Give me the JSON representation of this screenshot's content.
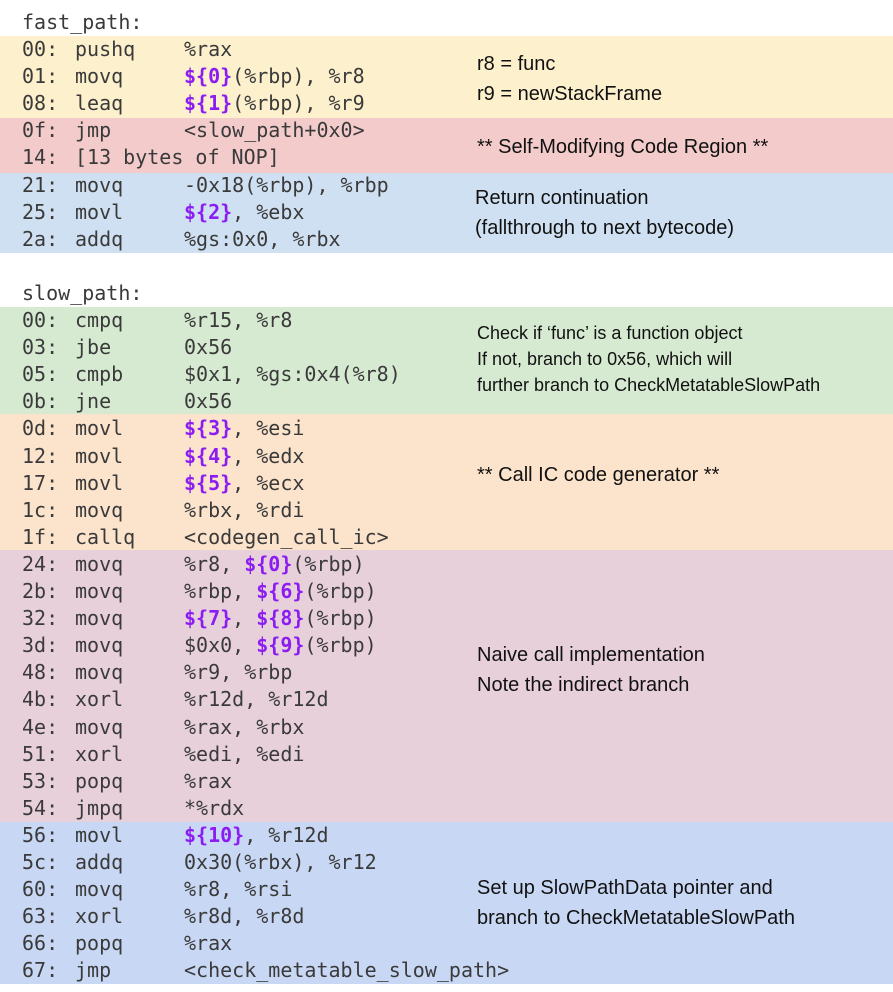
{
  "fast_path": {
    "label": "fast_path:",
    "lines": [
      {
        "addr": "00:",
        "op": "pushq",
        "args": [
          {
            "t": "%rax"
          }
        ]
      },
      {
        "addr": "01:",
        "op": "movq",
        "args": [
          {
            "t": "${0}",
            "ph": true
          },
          {
            "t": "(%rbp), %r8"
          }
        ]
      },
      {
        "addr": "08:",
        "op": "leaq",
        "args": [
          {
            "t": "${1}",
            "ph": true
          },
          {
            "t": "(%rbp), %r9"
          }
        ]
      },
      {
        "addr": "0f:",
        "op": "jmp",
        "args": [
          {
            "t": "<slow_path+0x0>"
          }
        ]
      },
      {
        "addr": "14:",
        "op": "[13 bytes of NOP]",
        "args": []
      },
      {
        "addr": "21:",
        "op": "movq",
        "args": [
          {
            "t": "-0x18(%rbp), %rbp"
          }
        ]
      },
      {
        "addr": "25:",
        "op": "movl",
        "args": [
          {
            "t": "${2}",
            "ph": true
          },
          {
            "t": ", %ebx"
          }
        ]
      },
      {
        "addr": "2a:",
        "op": "addq",
        "args": [
          {
            "t": "%gs:0x0, %rbx"
          }
        ]
      }
    ],
    "notes": {
      "setup": [
        "r8 = func",
        "r9 = newStackFrame"
      ],
      "smc": [
        "** Self-Modifying Code Region **"
      ],
      "return": [
        "Return continuation",
        "(fallthrough to next bytecode)"
      ]
    }
  },
  "slow_path": {
    "label": "slow_path:",
    "lines": [
      {
        "addr": "00:",
        "op": "cmpq",
        "args": [
          {
            "t": "%r15, %r8"
          }
        ]
      },
      {
        "addr": "03:",
        "op": "jbe",
        "args": [
          {
            "t": "0x56"
          }
        ]
      },
      {
        "addr": "05:",
        "op": "cmpb",
        "args": [
          {
            "t": "$0x1, %gs:0x4(%r8)"
          }
        ]
      },
      {
        "addr": "0b:",
        "op": "jne",
        "args": [
          {
            "t": "0x56"
          }
        ]
      },
      {
        "addr": "0d:",
        "op": "movl",
        "args": [
          {
            "t": "${3}",
            "ph": true
          },
          {
            "t": ", %esi"
          }
        ]
      },
      {
        "addr": "12:",
        "op": "movl",
        "args": [
          {
            "t": "${4}",
            "ph": true
          },
          {
            "t": ", %edx"
          }
        ]
      },
      {
        "addr": "17:",
        "op": "movl",
        "args": [
          {
            "t": "${5}",
            "ph": true
          },
          {
            "t": ", %ecx"
          }
        ]
      },
      {
        "addr": "1c:",
        "op": "movq",
        "args": [
          {
            "t": "%rbx, %rdi"
          }
        ]
      },
      {
        "addr": "1f:",
        "op": "callq",
        "args": [
          {
            "t": "<codegen_call_ic>"
          }
        ]
      },
      {
        "addr": "24:",
        "op": "movq",
        "args": [
          {
            "t": "%r8, "
          },
          {
            "t": "${0}",
            "ph": true
          },
          {
            "t": "(%rbp)"
          }
        ]
      },
      {
        "addr": "2b:",
        "op": "movq",
        "args": [
          {
            "t": "%rbp, "
          },
          {
            "t": "${6}",
            "ph": true
          },
          {
            "t": "(%rbp)"
          }
        ]
      },
      {
        "addr": "32:",
        "op": "movq",
        "args": [
          {
            "t": "${7}",
            "ph": true
          },
          {
            "t": ", "
          },
          {
            "t": "${8}",
            "ph": true
          },
          {
            "t": "(%rbp)"
          }
        ]
      },
      {
        "addr": "3d:",
        "op": "movq",
        "args": [
          {
            "t": "$0x0, "
          },
          {
            "t": "${9}",
            "ph": true
          },
          {
            "t": "(%rbp)"
          }
        ]
      },
      {
        "addr": "48:",
        "op": "movq",
        "args": [
          {
            "t": "%r9, %rbp"
          }
        ]
      },
      {
        "addr": "4b:",
        "op": "xorl",
        "args": [
          {
            "t": "%r12d, %r12d"
          }
        ]
      },
      {
        "addr": "4e:",
        "op": "movq",
        "args": [
          {
            "t": "%rax, %rbx"
          }
        ]
      },
      {
        "addr": "51:",
        "op": "xorl",
        "args": [
          {
            "t": "%edi, %edi"
          }
        ]
      },
      {
        "addr": "53:",
        "op": "popq",
        "args": [
          {
            "t": "%rax"
          }
        ]
      },
      {
        "addr": "54:",
        "op": "jmpq",
        "args": [
          {
            "t": "*%rdx"
          }
        ]
      },
      {
        "addr": "56:",
        "op": "movl",
        "args": [
          {
            "t": "${10}",
            "ph": true
          },
          {
            "t": ", %r12d"
          }
        ]
      },
      {
        "addr": "5c:",
        "op": "addq",
        "args": [
          {
            "t": "0x30(%rbx), %r12"
          }
        ]
      },
      {
        "addr": "60:",
        "op": "movq",
        "args": [
          {
            "t": "%r8, %rsi"
          }
        ]
      },
      {
        "addr": "63:",
        "op": "xorl",
        "args": [
          {
            "t": "%r8d, %r8d"
          }
        ]
      },
      {
        "addr": "66:",
        "op": "popq",
        "args": [
          {
            "t": "%rax"
          }
        ]
      },
      {
        "addr": "67:",
        "op": "jmp",
        "args": [
          {
            "t": "<check_metatable_slow_path>"
          }
        ]
      }
    ],
    "notes": {
      "check": [
        "Check if ‘func’ is a function object",
        "If not, branch to 0x56, which will",
        "further branch to CheckMetatableSlowPath"
      ],
      "ic": [
        "** Call IC code generator **"
      ],
      "naive": [
        "Naive call implementation",
        "Note the indirect branch"
      ],
      "setup": [
        "Set up SlowPathData pointer and",
        "branch to CheckMetatableSlowPath"
      ]
    }
  },
  "colors": {
    "fast_setup": "#fdf0cd",
    "smc": "#f3cbcb",
    "return": "#cfe0f2",
    "check": "#d6ead2",
    "ic": "#fbe3cc",
    "naive": "#e8d0db",
    "slow_setup": "#c8d8f4",
    "placeholder": "#8b1cf2"
  }
}
